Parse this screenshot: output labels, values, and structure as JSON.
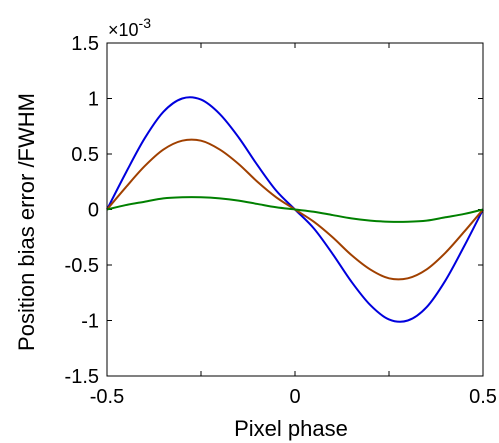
{
  "chart_data": {
    "type": "line",
    "xlabel": "Pixel phase",
    "ylabel": "Position bias error /FWHM",
    "xlim": [
      -0.5,
      0.5
    ],
    "ylim": [
      -1.5,
      1.5
    ],
    "x_ticks": [
      "-0.5",
      "0",
      "0.5"
    ],
    "x_tick_values": [
      -0.5,
      0,
      0.5
    ],
    "y_ticks": [
      "1.5",
      "1",
      "0.5",
      "0",
      "-0.5",
      "-1",
      "-1.5"
    ],
    "y_tick_values": [
      1.5,
      1,
      0.5,
      0,
      -0.5,
      -1,
      -1.5
    ],
    "y_multiplier_base": "×10",
    "y_multiplier_exp": "-3",
    "grid": false,
    "x": [
      -0.5,
      -0.45,
      -0.4,
      -0.35,
      -0.3,
      -0.25,
      -0.2,
      -0.15,
      -0.1,
      -0.05,
      0,
      0.05,
      0.1,
      0.15,
      0.2,
      0.25,
      0.3,
      0.35,
      0.4,
      0.45,
      0.5
    ],
    "series": [
      {
        "color": "#0000dd",
        "values": [
          0.0,
          0.33,
          0.64,
          0.88,
          1.0,
          0.99,
          0.86,
          0.65,
          0.4,
          0.17,
          0.0,
          -0.17,
          -0.4,
          -0.65,
          -0.86,
          -0.99,
          -1.0,
          -0.88,
          -0.64,
          -0.33,
          0.0
        ]
      },
      {
        "color": "#a04000",
        "values": [
          0.0,
          0.2,
          0.39,
          0.54,
          0.62,
          0.62,
          0.54,
          0.41,
          0.25,
          0.11,
          0.0,
          -0.11,
          -0.25,
          -0.41,
          -0.54,
          -0.62,
          -0.62,
          -0.54,
          -0.39,
          -0.2,
          0.0
        ]
      },
      {
        "color": "#008000",
        "values": [
          0.0,
          0.04,
          0.07,
          0.1,
          0.11,
          0.11,
          0.1,
          0.08,
          0.05,
          0.02,
          0.0,
          -0.02,
          -0.05,
          -0.08,
          -0.1,
          -0.11,
          -0.11,
          -0.1,
          -0.07,
          -0.04,
          0.0
        ]
      }
    ]
  }
}
